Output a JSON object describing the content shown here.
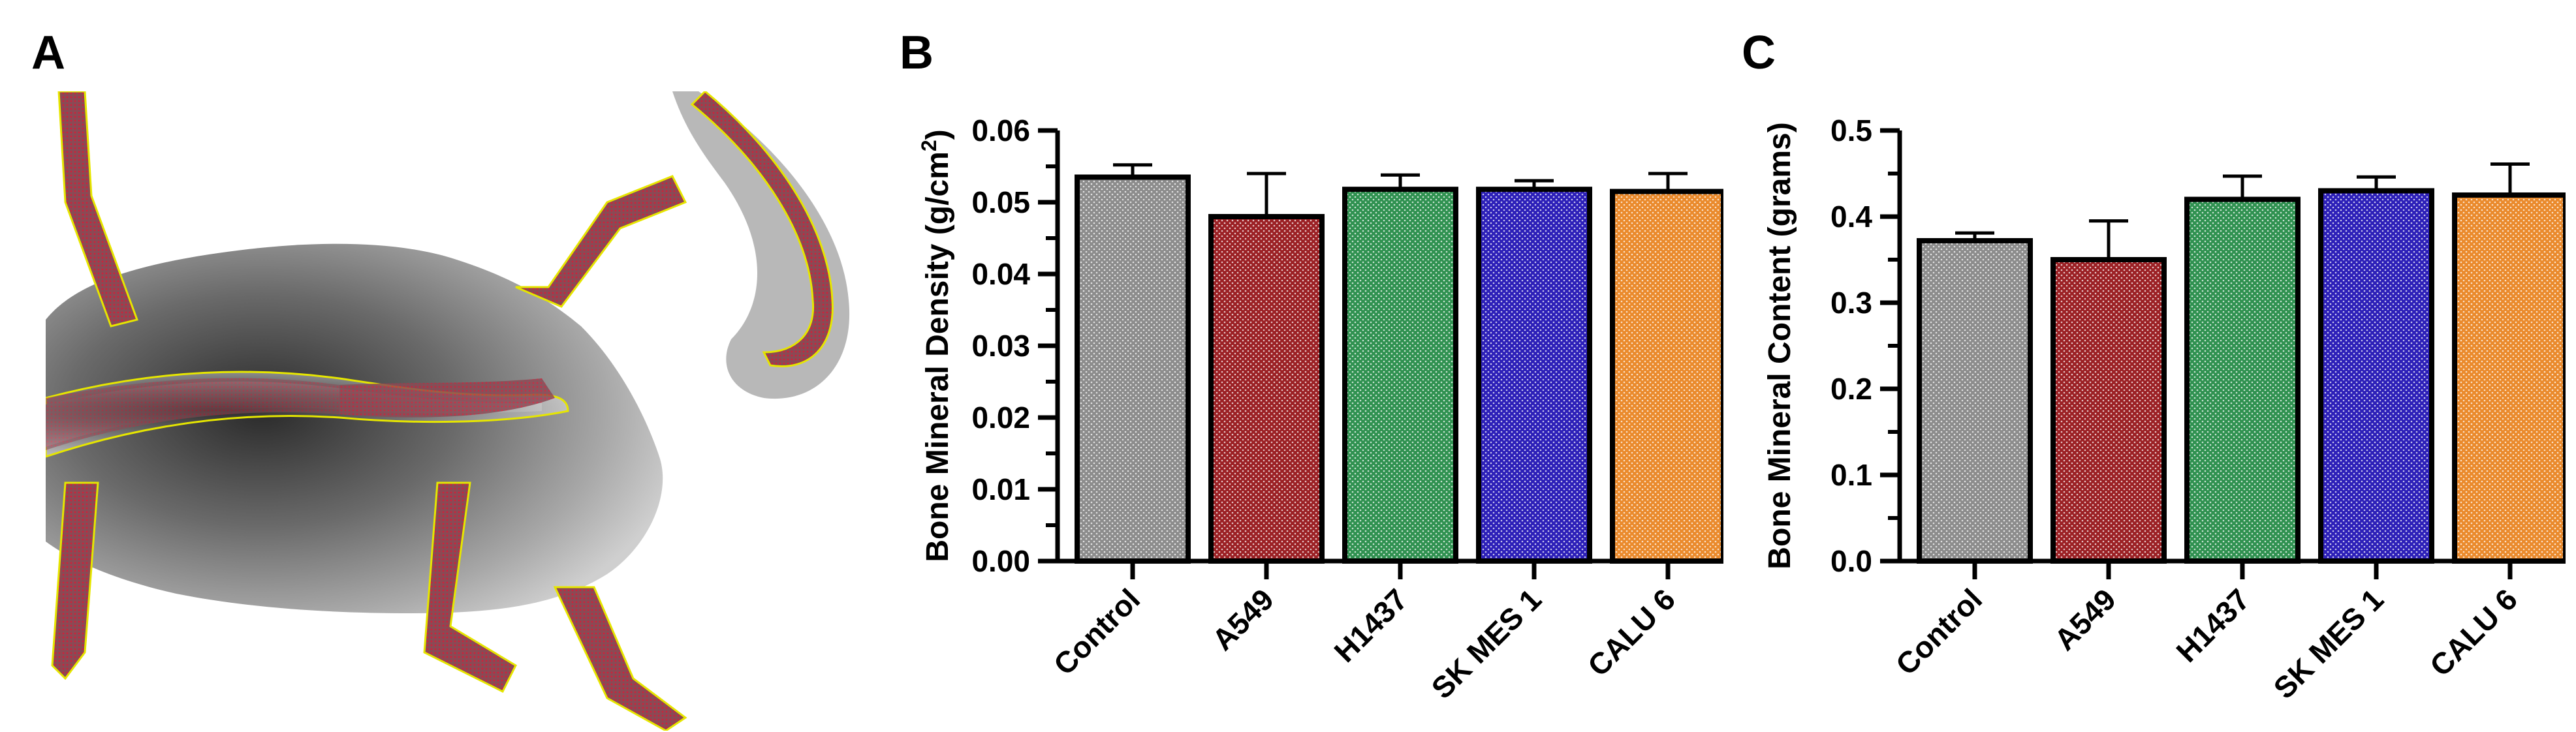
{
  "panels": [
    {
      "letter": "A"
    },
    {
      "letter": "B"
    },
    {
      "letter": "C"
    }
  ],
  "chart_data": [
    {
      "panel": "B",
      "type": "bar",
      "ylabel_main": "Bone Mineral Density (g/cm",
      "ylabel_sup": "2",
      "ylabel_close": ")",
      "xlabel": "",
      "categories": [
        "Control",
        "A549",
        "H1437",
        "SK MES 1",
        "CALU 6"
      ],
      "values": [
        0.0535,
        0.048,
        0.0518,
        0.0518,
        0.0515
      ],
      "errors": [
        0.0017,
        0.006,
        0.002,
        0.0012,
        0.0025
      ],
      "colors": [
        "#8c8c8c",
        "#9b2024",
        "#2f9150",
        "#2c1fb8",
        "#ea8a2c"
      ],
      "ylim": [
        0,
        0.06
      ],
      "yticks": [
        "0.00",
        "0.01",
        "0.02",
        "0.03",
        "0.04",
        "0.05",
        "0.06"
      ],
      "ytick_values": [
        0,
        0.01,
        0.02,
        0.03,
        0.04,
        0.05,
        0.06
      ],
      "minor_ticks": true,
      "grid": false,
      "legend": "none"
    },
    {
      "panel": "C",
      "type": "bar",
      "ylabel_main": "Bone Mineral Content (grams)",
      "ylabel_sup": "",
      "ylabel_close": "",
      "xlabel": "",
      "categories": [
        "Control",
        "A549",
        "H1437",
        "SK MES 1",
        "CALU 6"
      ],
      "values": [
        0.372,
        0.35,
        0.42,
        0.43,
        0.425
      ],
      "errors": [
        0.009,
        0.045,
        0.027,
        0.016,
        0.036
      ],
      "colors": [
        "#8c8c8c",
        "#9b2024",
        "#2f9150",
        "#2c1fb8",
        "#ea8a2c"
      ],
      "ylim": [
        0,
        0.5
      ],
      "yticks": [
        "0.0",
        "0.1",
        "0.2",
        "0.3",
        "0.4",
        "0.5"
      ],
      "ytick_values": [
        0,
        0.1,
        0.2,
        0.3,
        0.4,
        0.5
      ],
      "minor_ticks": true,
      "grid": false,
      "legend": "none"
    }
  ]
}
